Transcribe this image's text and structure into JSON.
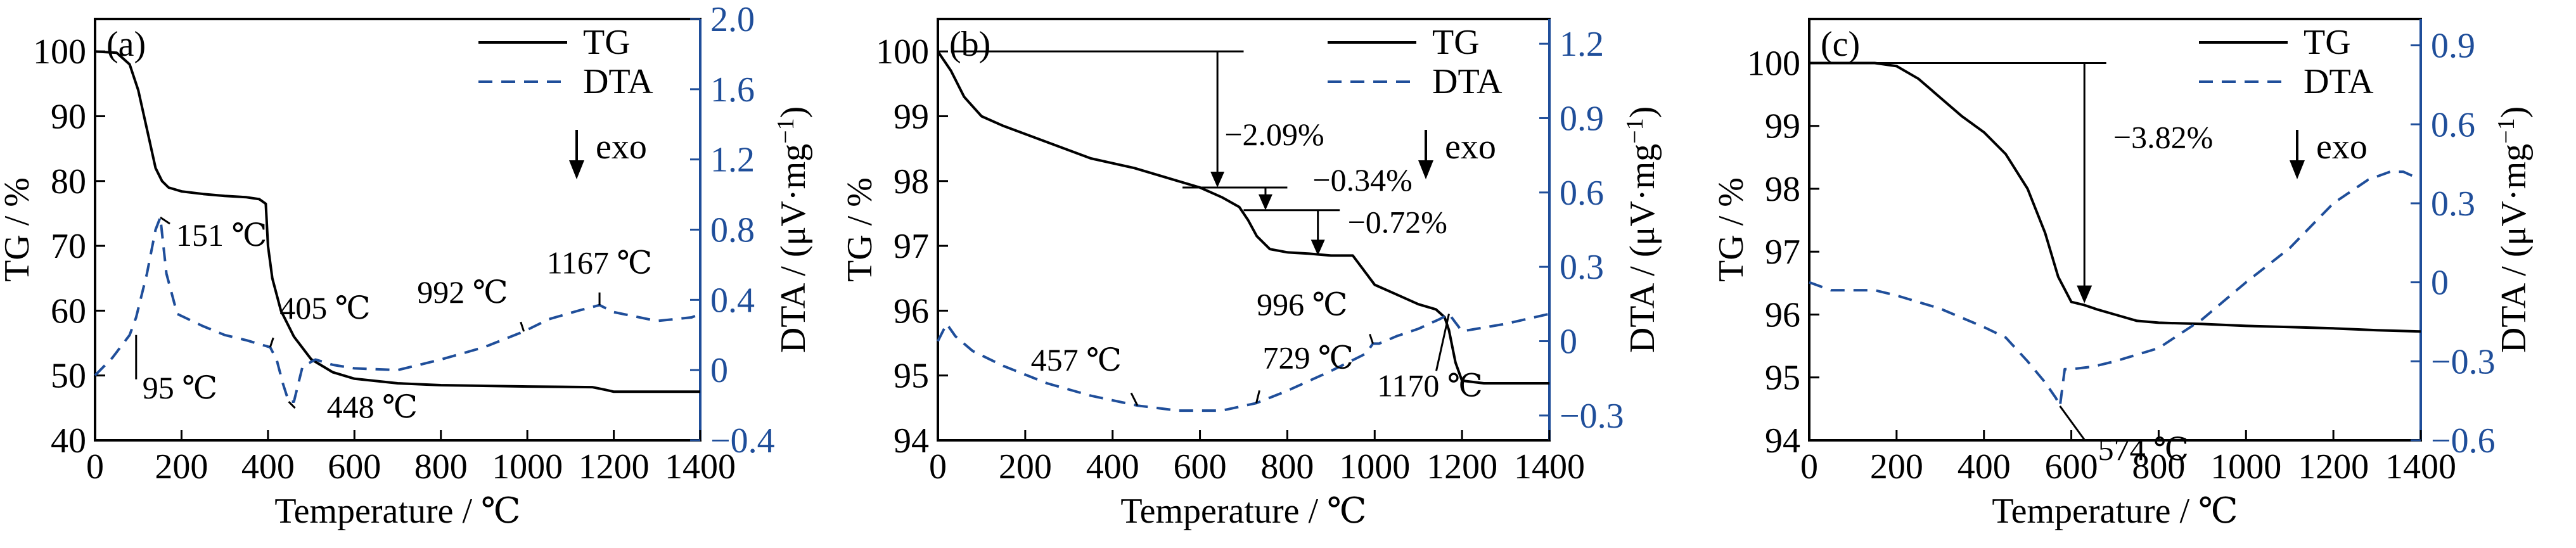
{
  "style": {
    "tg_color": "#000000",
    "dta_color": "#1f4e9a",
    "axis_color": "#000000"
  },
  "chart_data": [
    {
      "panel_label": "(a)",
      "type": "line",
      "xlabel": "Temperature /  ℃",
      "ylabel_left": "TG / %",
      "ylabel_right": "DTA / (μV·mg",
      "ylabel_right_sup": "−1",
      "ylabel_right_close": ")",
      "xlim": [
        0,
        1400
      ],
      "ylim_left": [
        40,
        105
      ],
      "ylim_right": [
        -0.4,
        2.0
      ],
      "x_ticks": [
        0,
        200,
        400,
        600,
        800,
        1000,
        1200,
        1400
      ],
      "x_tick_labels": [
        "0",
        "200",
        "400",
        "600",
        "800",
        "1000",
        "1200",
        "1400"
      ],
      "y_left_ticks": [
        40,
        50,
        60,
        70,
        80,
        90,
        100
      ],
      "y_left_tick_labels": [
        "40",
        "50",
        "60",
        "70",
        "80",
        "90",
        "100"
      ],
      "y_right_ticks": [
        -0.4,
        0,
        0.4,
        0.8,
        1.2,
        1.6,
        2.0
      ],
      "y_right_tick_labels": [
        "−0.4",
        "0",
        "0.4",
        "0.8",
        "1.2",
        "1.6",
        "2.0"
      ],
      "legend": {
        "placement": "top-right",
        "entries": [
          "TG",
          "DTA"
        ]
      },
      "exo_label": "exo",
      "series": [
        {
          "name": "TG",
          "axis": "left",
          "x": [
            0,
            50,
            80,
            100,
            120,
            140,
            155,
            170,
            200,
            250,
            300,
            350,
            380,
            395,
            400,
            410,
            430,
            460,
            500,
            550,
            600,
            700,
            800,
            1000,
            1150,
            1180,
            1200,
            1300,
            1400
          ],
          "y": [
            100,
            99.8,
            98,
            94,
            88,
            82,
            80,
            79,
            78.4,
            78,
            77.7,
            77.5,
            77.2,
            76.5,
            70,
            65,
            60,
            56,
            52.5,
            50.5,
            49.5,
            48.8,
            48.5,
            48.3,
            48.2,
            47.8,
            47.5,
            47.5,
            47.5
          ]
        },
        {
          "name": "DTA",
          "axis": "right",
          "x": [
            0,
            40,
            80,
            95,
            120,
            140,
            151,
            165,
            190,
            250,
            300,
            350,
            405,
            420,
            435,
            448,
            460,
            480,
            510,
            550,
            600,
            700,
            800,
            900,
            992,
            1050,
            1120,
            1167,
            1200,
            1300,
            1380,
            1400
          ],
          "y": [
            -0.03,
            0.07,
            0.2,
            0.3,
            0.55,
            0.8,
            0.87,
            0.55,
            0.32,
            0.25,
            0.2,
            0.17,
            0.13,
            0.06,
            -0.08,
            -0.18,
            -0.18,
            0.02,
            0.06,
            0.03,
            0.01,
            0.0,
            0.06,
            0.13,
            0.22,
            0.29,
            0.34,
            0.37,
            0.33,
            0.28,
            0.3,
            0.32
          ]
        }
      ],
      "annotations": [
        {
          "text": "151 ℃",
          "x": 151,
          "y": 0.87
        },
        {
          "text": "95 ℃",
          "x": 95,
          "y": 0.2
        },
        {
          "text": "405 ℃",
          "x": 405,
          "y": 0.13
        },
        {
          "text": "448 ℃",
          "x": 448,
          "y": -0.18
        },
        {
          "text": "992 ℃",
          "x": 992,
          "y": 0.22
        },
        {
          "text": "1167 ℃",
          "x": 1167,
          "y": 0.37
        }
      ]
    },
    {
      "panel_label": "(b)",
      "type": "line",
      "xlabel": "Temperature / ℃",
      "ylabel_left": "TG / %",
      "ylabel_right": "DTA / (μV·mg",
      "ylabel_right_sup": "−1",
      "ylabel_right_close": ")",
      "xlim": [
        0,
        1400
      ],
      "ylim_left": [
        94,
        100.5
      ],
      "ylim_right": [
        -0.4,
        1.3
      ],
      "x_ticks": [
        0,
        200,
        400,
        600,
        800,
        1000,
        1200,
        1400
      ],
      "x_tick_labels": [
        "0",
        "200",
        "400",
        "600",
        "800",
        "1000",
        "1200",
        "1400"
      ],
      "y_left_ticks": [
        94,
        95,
        96,
        97,
        98,
        99,
        100
      ],
      "y_left_tick_labels": [
        "94",
        "95",
        "96",
        "97",
        "98",
        "99",
        "100"
      ],
      "y_right_ticks": [
        -0.3,
        0,
        0.3,
        0.6,
        0.9,
        1.2
      ],
      "y_right_tick_labels": [
        "−0.3",
        "0",
        "0.3",
        "0.6",
        "0.9",
        "1.2"
      ],
      "legend": {
        "placement": "top-right",
        "entries": [
          "TG",
          "DTA"
        ]
      },
      "exo_label": "exo",
      "series": [
        {
          "name": "TG",
          "axis": "left",
          "x": [
            0,
            30,
            60,
            100,
            150,
            250,
            350,
            450,
            550,
            600,
            650,
            690,
            710,
            730,
            760,
            800,
            850,
            900,
            950,
            1000,
            1050,
            1100,
            1140,
            1160,
            1170,
            1185,
            1200,
            1250,
            1300,
            1400
          ],
          "y": [
            100,
            99.7,
            99.3,
            99,
            98.85,
            98.6,
            98.35,
            98.2,
            98.0,
            97.9,
            97.75,
            97.6,
            97.4,
            97.15,
            96.95,
            96.9,
            96.88,
            96.85,
            96.85,
            96.4,
            96.25,
            96.1,
            96.02,
            95.9,
            95.7,
            95.2,
            94.92,
            94.88,
            94.88,
            94.88
          ]
        },
        {
          "name": "DTA",
          "axis": "right",
          "x": [
            0,
            20,
            40,
            80,
            150,
            250,
            350,
            457,
            550,
            650,
            729,
            800,
            900,
            980,
            996,
            1010,
            1050,
            1100,
            1150,
            1170,
            1200,
            1300,
            1400
          ],
          "y": [
            0.0,
            0.07,
            0.02,
            -0.04,
            -0.1,
            -0.17,
            -0.22,
            -0.26,
            -0.28,
            -0.28,
            -0.25,
            -0.2,
            -0.12,
            -0.05,
            -0.01,
            -0.01,
            0.02,
            0.05,
            0.09,
            0.11,
            0.04,
            0.07,
            0.11
          ]
        }
      ],
      "annotations": [
        {
          "text": "−2.09%",
          "x": 620,
          "y": 98.75
        },
        {
          "text": "−0.34%",
          "x": 800,
          "y": 97.85
        },
        {
          "text": "−0.72%",
          "x": 880,
          "y": 97.2
        },
        {
          "text": "996 ℃",
          "x": 996,
          "y": -0.01
        },
        {
          "text": "457 ℃",
          "x": 457,
          "y": -0.26
        },
        {
          "text": "729 ℃",
          "x": 729,
          "y": -0.25
        },
        {
          "text": "1170 ℃",
          "x": 1170,
          "y": 0.11
        }
      ]
    },
    {
      "panel_label": "(c)",
      "type": "line",
      "xlabel": "Temperature / ℃",
      "ylabel_left": "TG / %",
      "ylabel_right": "DTA / (μV·mg",
      "ylabel_right_sup": "−1",
      "ylabel_right_close": ")",
      "xlim": [
        0,
        1400
      ],
      "ylim_left": [
        94,
        100.7
      ],
      "ylim_right": [
        -0.6,
        1.0
      ],
      "x_ticks": [
        0,
        200,
        400,
        600,
        800,
        1000,
        1200,
        1400
      ],
      "x_tick_labels": [
        "0",
        "200",
        "400",
        "600",
        "800",
        "1000",
        "1200",
        "1400"
      ],
      "y_left_ticks": [
        94,
        95,
        96,
        97,
        98,
        99,
        100
      ],
      "y_left_tick_labels": [
        "94",
        "95",
        "96",
        "97",
        "98",
        "99",
        "100"
      ],
      "y_right_ticks": [
        -0.6,
        -0.3,
        0,
        0.3,
        0.6,
        0.9
      ],
      "y_right_tick_labels": [
        "−0.6",
        "−0.3",
        "0",
        "0.3",
        "0.6",
        "0.9"
      ],
      "legend": {
        "placement": "top-right",
        "entries": [
          "TG",
          "DTA"
        ]
      },
      "exo_label": "exo",
      "series": [
        {
          "name": "TG",
          "axis": "left",
          "x": [
            0,
            50,
            100,
            150,
            200,
            250,
            300,
            350,
            400,
            450,
            500,
            540,
            570,
            600,
            630,
            660,
            700,
            750,
            800,
            900,
            1000,
            1100,
            1200,
            1300,
            1400
          ],
          "y": [
            100,
            100,
            100,
            100,
            99.95,
            99.75,
            99.45,
            99.15,
            98.9,
            98.55,
            98.0,
            97.3,
            96.6,
            96.2,
            96.15,
            96.08,
            96.0,
            95.9,
            95.87,
            95.85,
            95.82,
            95.8,
            95.78,
            95.75,
            95.73
          ]
        },
        {
          "name": "DTA",
          "axis": "right",
          "x": [
            0,
            50,
            100,
            150,
            200,
            300,
            400,
            450,
            500,
            540,
            565,
            574,
            585,
            600,
            650,
            700,
            800,
            900,
            1000,
            1100,
            1200,
            1280,
            1330,
            1360,
            1400
          ],
          "y": [
            0.0,
            -0.03,
            -0.03,
            -0.03,
            -0.05,
            -0.1,
            -0.17,
            -0.21,
            -0.3,
            -0.38,
            -0.44,
            -0.47,
            -0.33,
            -0.33,
            -0.32,
            -0.3,
            -0.25,
            -0.14,
            0.0,
            0.13,
            0.3,
            0.39,
            0.42,
            0.42,
            0.39
          ]
        }
      ],
      "annotations": [
        {
          "text": "−3.82%",
          "x": 660,
          "y": 98.65
        },
        {
          "text": "574 ℃",
          "x": 574,
          "y": -0.47
        }
      ]
    }
  ]
}
